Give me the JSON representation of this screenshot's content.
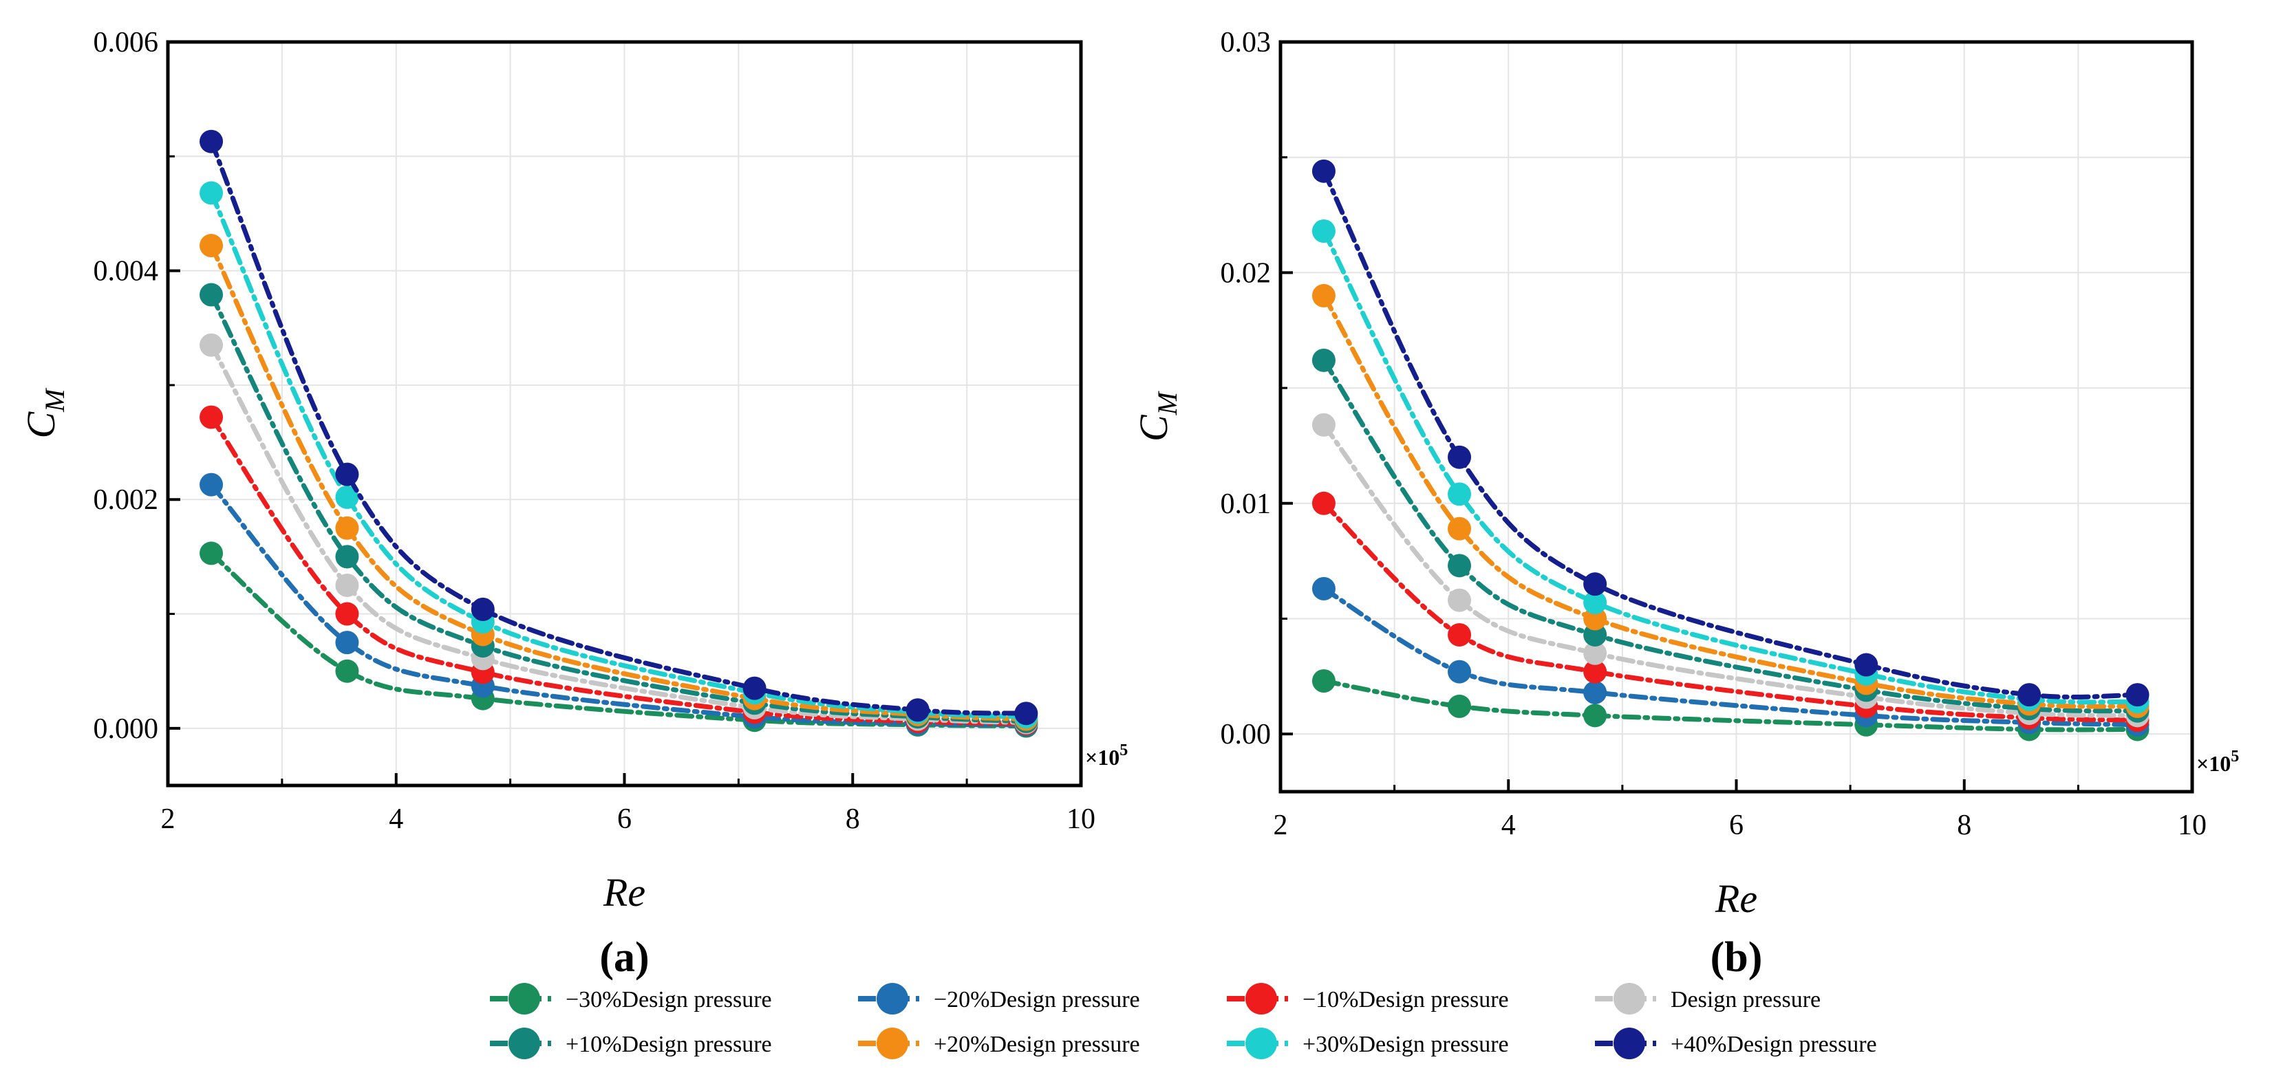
{
  "chart_data": [
    {
      "type": "line",
      "panel_label": "(a)",
      "xlabel": "Re",
      "ylabel_main": "C",
      "ylabel_sub": "M",
      "x_multiplier_text": "×10",
      "x_multiplier_exp": "5",
      "xlim": [
        2,
        10
      ],
      "ylim": [
        -0.0005,
        0.006
      ],
      "xticks": [
        2,
        4,
        6,
        8,
        10
      ],
      "xtick_labels": [
        "2",
        "4",
        "6",
        "8",
        "10"
      ],
      "yticks": [
        0,
        0.002,
        0.004,
        0.006
      ],
      "ytick_labels": [
        "0.000",
        "0.002",
        "0.004",
        "0.006"
      ],
      "grid": true,
      "x": [
        2.38,
        3.57,
        4.76,
        7.14,
        8.57,
        9.52
      ],
      "series": [
        {
          "name": "−30%Design pressure",
          "color": "#1a8f5c",
          "values": [
            0.00153,
            0.0005,
            0.00026,
            7e-05,
            3e-05,
            2e-05
          ]
        },
        {
          "name": "−20%Design pressure",
          "color": "#1f6fb2",
          "values": [
            0.00213,
            0.00075,
            0.00037,
            0.0001,
            4e-05,
            3e-05
          ]
        },
        {
          "name": "−10%Design pressure",
          "color": "#ee1c1c",
          "values": [
            0.00272,
            0.001,
            0.00049,
            0.00014,
            6e-05,
            4e-05
          ]
        },
        {
          "name": "Design pressure",
          "color": "#c6c6c6",
          "values": [
            0.00335,
            0.00125,
            0.00061,
            0.00018,
            8e-05,
            5e-05
          ]
        },
        {
          "name": "+10%Design pressure",
          "color": "#13857a",
          "values": [
            0.00379,
            0.0015,
            0.00072,
            0.00022,
            0.0001,
            6e-05
          ]
        },
        {
          "name": "+20%Design pressure",
          "color": "#f28c14",
          "values": [
            0.00422,
            0.00175,
            0.00082,
            0.00026,
            0.00012,
            8e-05
          ]
        },
        {
          "name": "+30%Design pressure",
          "color": "#1dcfcf",
          "values": [
            0.00468,
            0.00202,
            0.00093,
            0.00031,
            0.00014,
            0.0001
          ]
        },
        {
          "name": "+40%Design pressure",
          "color": "#141e8c",
          "values": [
            0.00513,
            0.00222,
            0.00104,
            0.00035,
            0.00016,
            0.00013
          ]
        }
      ]
    },
    {
      "type": "line",
      "panel_label": "(b)",
      "xlabel": "Re",
      "ylabel_main": "C",
      "ylabel_sub": "M",
      "x_multiplier_text": "×10",
      "x_multiplier_exp": "5",
      "xlim": [
        2,
        10
      ],
      "ylim": [
        -0.0025,
        0.03
      ],
      "xticks": [
        2,
        4,
        6,
        8,
        10
      ],
      "xtick_labels": [
        "2",
        "4",
        "6",
        "8",
        "10"
      ],
      "yticks": [
        0,
        0.01,
        0.02,
        0.03
      ],
      "ytick_labels": [
        "0.00",
        "0.01",
        "0.02",
        "0.03"
      ],
      "grid": true,
      "x": [
        2.38,
        3.57,
        4.76,
        7.14,
        8.57,
        9.52
      ],
      "series": [
        {
          "name": "−30%Design pressure",
          "color": "#1a8f5c",
          "values": [
            0.0023,
            0.0012,
            0.0008,
            0.0004,
            0.0002,
            0.0002
          ]
        },
        {
          "name": "−20%Design pressure",
          "color": "#1f6fb2",
          "values": [
            0.0063,
            0.0027,
            0.0018,
            0.0008,
            0.0005,
            0.0004
          ]
        },
        {
          "name": "−10%Design pressure",
          "color": "#ee1c1c",
          "values": [
            0.01,
            0.0043,
            0.0027,
            0.0012,
            0.0007,
            0.0006
          ]
        },
        {
          "name": "Design pressure",
          "color": "#c6c6c6",
          "values": [
            0.0134,
            0.0058,
            0.0035,
            0.0016,
            0.0009,
            0.0008
          ]
        },
        {
          "name": "+10%Design pressure",
          "color": "#13857a",
          "values": [
            0.0162,
            0.0073,
            0.0043,
            0.0019,
            0.0011,
            0.001
          ]
        },
        {
          "name": "+20%Design pressure",
          "color": "#f28c14",
          "values": [
            0.019,
            0.0089,
            0.005,
            0.0022,
            0.0013,
            0.0012
          ]
        },
        {
          "name": "+30%Design pressure",
          "color": "#1dcfcf",
          "values": [
            0.0218,
            0.0104,
            0.0057,
            0.0026,
            0.0015,
            0.0014
          ]
        },
        {
          "name": "+40%Design pressure",
          "color": "#141e8c",
          "values": [
            0.0244,
            0.012,
            0.0065,
            0.003,
            0.0017,
            0.0017
          ]
        }
      ]
    }
  ],
  "legend": {
    "placement": "bottom-center",
    "items": [
      {
        "label": "−30%Design pressure",
        "color": "#1a8f5c"
      },
      {
        "label": "−20%Design pressure",
        "color": "#1f6fb2"
      },
      {
        "label": "−10%Design pressure",
        "color": "#ee1c1c"
      },
      {
        "label": "Design pressure",
        "color": "#c6c6c6"
      },
      {
        "label": "+10%Design pressure",
        "color": "#13857a"
      },
      {
        "label": "+20%Design pressure",
        "color": "#f28c14"
      },
      {
        "label": "+30%Design pressure",
        "color": "#1dcfcf"
      },
      {
        "label": "+40%Design pressure",
        "color": "#141e8c"
      }
    ]
  }
}
